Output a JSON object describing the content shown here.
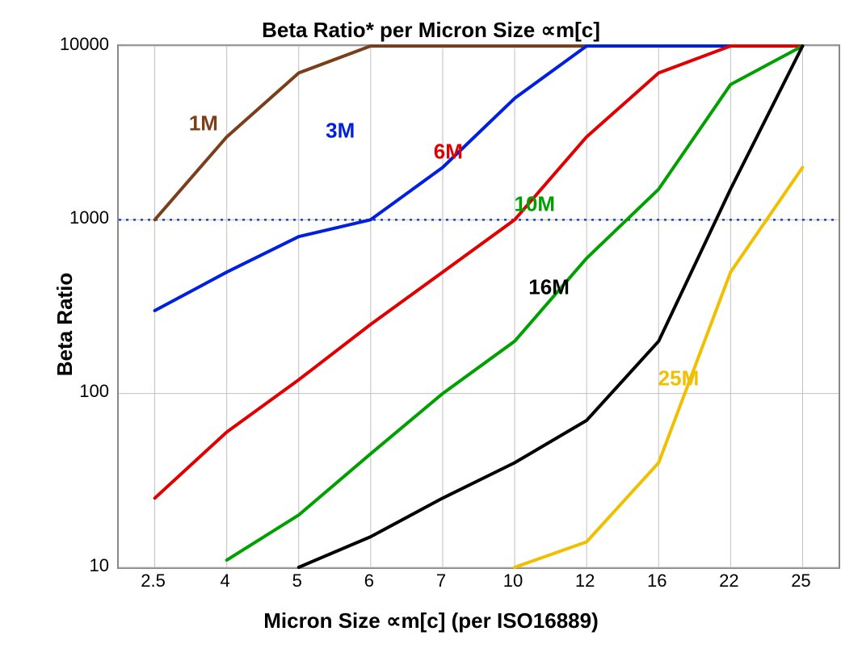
{
  "chart": {
    "type": "line",
    "title": "Beta Ratio* per Micron Size ∝m[c]",
    "x_axis": {
      "label": "Micron Size ∝m[c] (per ISO16889)",
      "categories": [
        "2.5",
        "4",
        "5",
        "6",
        "7",
        "10",
        "12",
        "16",
        "22",
        "25"
      ]
    },
    "y_axis": {
      "label": "Beta Ratio",
      "scale": "log",
      "ticks": [
        10,
        100,
        1000,
        10000
      ],
      "tick_labels": [
        "10",
        "100",
        "1000",
        "10000"
      ],
      "ylim": [
        10,
        10000
      ]
    },
    "reference_line": {
      "y": 1000,
      "color": "#2040c0",
      "style": "dotted"
    },
    "grid_color": "#c0c0c0",
    "background_color": "#ffffff",
    "series": [
      {
        "name": "1M",
        "color": "#7a3e1a",
        "line_width": 4,
        "label_color": "#7a3e1a",
        "label_x": 0.7,
        "label_y": 3500,
        "data": [
          1000,
          3000,
          7000,
          10000,
          10000,
          10000,
          10000,
          10000,
          10000,
          10000
        ]
      },
      {
        "name": "3M",
        "color": "#0020e0",
        "line_width": 4,
        "label_color": "#0020e0",
        "label_x": 2.6,
        "label_y": 3200,
        "data": [
          300,
          500,
          800,
          1000,
          2000,
          5000,
          10000,
          10000,
          10000,
          10000
        ]
      },
      {
        "name": "6M",
        "color": "#e00000",
        "line_width": 4,
        "label_color": "#e00000",
        "label_x": 4.1,
        "label_y": 2400,
        "data": [
          25,
          60,
          120,
          250,
          500,
          1000,
          3000,
          7000,
          10000,
          10000
        ]
      },
      {
        "name": "10M",
        "color": "#00a000",
        "line_width": 4,
        "label_color": "#00a000",
        "label_x": 5.3,
        "label_y": 1200,
        "data": [
          null,
          11,
          20,
          45,
          100,
          200,
          600,
          1500,
          6000,
          10000
        ]
      },
      {
        "name": "16M",
        "color": "#000000",
        "line_width": 4,
        "label_color": "#000000",
        "label_x": 5.5,
        "label_y": 400,
        "data": [
          null,
          null,
          10,
          15,
          25,
          40,
          70,
          200,
          1500,
          10000
        ]
      },
      {
        "name": "25M",
        "color": "#f0c000",
        "line_width": 4,
        "label_color": "#f0c000",
        "label_x": 7.3,
        "label_y": 120,
        "data": [
          null,
          null,
          null,
          null,
          null,
          10,
          14,
          40,
          500,
          2000
        ]
      }
    ]
  }
}
